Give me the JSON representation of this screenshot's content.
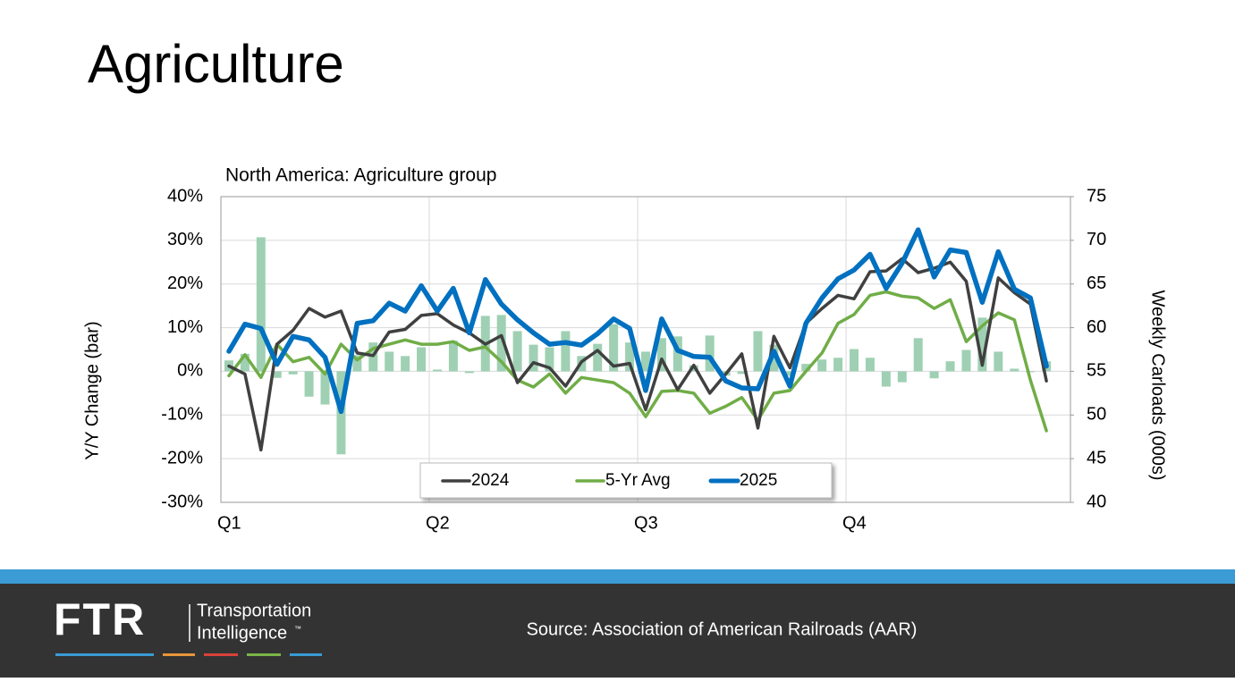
{
  "title": "Agriculture",
  "chart_data": {
    "type": "line",
    "title": "North America: Agriculture group",
    "ylabel": "Y/Y Change (bar)",
    "y2label": "Weekly Carloads (000s)",
    "x": [
      0.5,
      1.5,
      2.5,
      3.5,
      4.5,
      5.5,
      6.5,
      7.5,
      8.5,
      9.5,
      10.5,
      11.5,
      12.5,
      13.5,
      14.5,
      15.5,
      16.5,
      17.5,
      18.5,
      19.5,
      20.5,
      21.5,
      22.5,
      23.5,
      24.5,
      25.5,
      26.5,
      27.5,
      28.5,
      29.5,
      30.5,
      31.5,
      32.5,
      33.5,
      34.5,
      35.5,
      36.5,
      37.5,
      38.5,
      39.5,
      40.5,
      41.5,
      42.5,
      43.5,
      44.5,
      45.5,
      46.5,
      47.5,
      48.5,
      49.5,
      50.5,
      51.5
    ],
    "xlim": [
      0,
      53
    ],
    "xticks": [
      {
        "value": 0,
        "label": "Q1"
      },
      {
        "value": 13,
        "label": "Q2"
      },
      {
        "value": 26,
        "label": "Q3"
      },
      {
        "value": 39,
        "label": "Q4"
      }
    ],
    "ylim": [
      -30,
      40
    ],
    "yticks": [
      {
        "value": -30,
        "label": "-30%"
      },
      {
        "value": -20,
        "label": "-20%"
      },
      {
        "value": -10,
        "label": "-10%"
      },
      {
        "value": 0,
        "label": "0%"
      },
      {
        "value": 10,
        "label": "10%"
      },
      {
        "value": 20,
        "label": "20%"
      },
      {
        "value": 30,
        "label": "30%"
      },
      {
        "value": 40,
        "label": "40%"
      }
    ],
    "y2lim": [
      40,
      75
    ],
    "y2ticks": [
      40,
      45,
      50,
      55,
      60,
      65,
      70,
      75
    ],
    "grid": true,
    "legend": "bottom",
    "bars": {
      "type": "bar",
      "color": "#9fd0b4",
      "values": [
        2.5,
        4,
        30.7,
        -1.5,
        -0.7,
        -5.8,
        -7.6,
        -19,
        3.7,
        6.6,
        4.5,
        3.5,
        5.5,
        0.4,
        7,
        -0.4,
        12.7,
        12.9,
        9.2,
        6.1,
        5.5,
        9.2,
        3.5,
        6.3,
        10.8,
        6.6,
        4.5,
        7.6,
        8,
        1.4,
        8.2,
        -1,
        -0.6,
        9.2,
        6.1,
        -1,
        1.7,
        2.7,
        3.1,
        5.1,
        3.1,
        -3.5,
        -2.5,
        7.6,
        -1.6,
        2.3,
        4.9,
        12.3,
        4.5,
        0.6,
        -0.2,
        2.3
      ]
    },
    "series": [
      {
        "name": "2024",
        "color": "#404040",
        "axis": "y2",
        "values": [
          55.6,
          54.7,
          46.0,
          58.1,
          59.7,
          62.2,
          61.2,
          61.9,
          57.1,
          56.8,
          59.5,
          59.8,
          61.4,
          61.6,
          60.3,
          59.4,
          58.1,
          59.1,
          53.7,
          56.0,
          55.4,
          53.3,
          56.1,
          57.4,
          55.6,
          55.9,
          50.6,
          56.4,
          52.9,
          55.7,
          52.5,
          54.7,
          57.0,
          48.5,
          59.0,
          55.4,
          60.5,
          62.2,
          63.7,
          63.3,
          66.4,
          66.5,
          67.9,
          66.3,
          66.8,
          67.5,
          65.3,
          55.7,
          65.7,
          64.0,
          62.7,
          53.9
        ]
      },
      {
        "name": "5-Yr Avg",
        "color": "#70ad47",
        "axis": "y2",
        "values": [
          54.5,
          56.9,
          54.3,
          58.1,
          56.1,
          56.6,
          54.7,
          58.1,
          56.3,
          57.6,
          58.1,
          58.6,
          58.1,
          58.1,
          58.4,
          57.4,
          57.8,
          56.1,
          54.0,
          53.2,
          54.7,
          52.5,
          54.3,
          54.0,
          53.7,
          52.5,
          49.8,
          52.7,
          52.8,
          52.5,
          50.2,
          51.0,
          52.0,
          49.4,
          52.5,
          52.8,
          55.0,
          57.1,
          60.5,
          61.5,
          63.7,
          64.1,
          63.6,
          63.4,
          62.2,
          63.2,
          58.4,
          60.2,
          61.7,
          60.9,
          54.0,
          48.2
        ]
      },
      {
        "name": "2025",
        "color": "#0070c0",
        "axis": "y2",
        "values": [
          57.3,
          60.4,
          59.9,
          55.8,
          59.0,
          58.6,
          56.6,
          50.4,
          60.5,
          60.8,
          62.8,
          61.9,
          64.8,
          61.9,
          64.5,
          59.4,
          65.5,
          62.7,
          60.9,
          59.4,
          58.1,
          58.3,
          58.0,
          59.3,
          61.0,
          59.9,
          52.8,
          61.0,
          57.4,
          56.7,
          56.6,
          53.9,
          53.1,
          53.0,
          57.3,
          53.3,
          60.5,
          63.4,
          65.6,
          66.6,
          68.4,
          64.5,
          67.4,
          71.2,
          65.8,
          68.9,
          68.6,
          62.9,
          68.7,
          64.4,
          63.4,
          55.6
        ]
      }
    ]
  },
  "footer": {
    "logo": "FTR",
    "logo_line1": "Transportation",
    "logo_line2": "Intelligence",
    "trademark": "™",
    "source": "Source: Association of American Railroads (AAR)"
  }
}
